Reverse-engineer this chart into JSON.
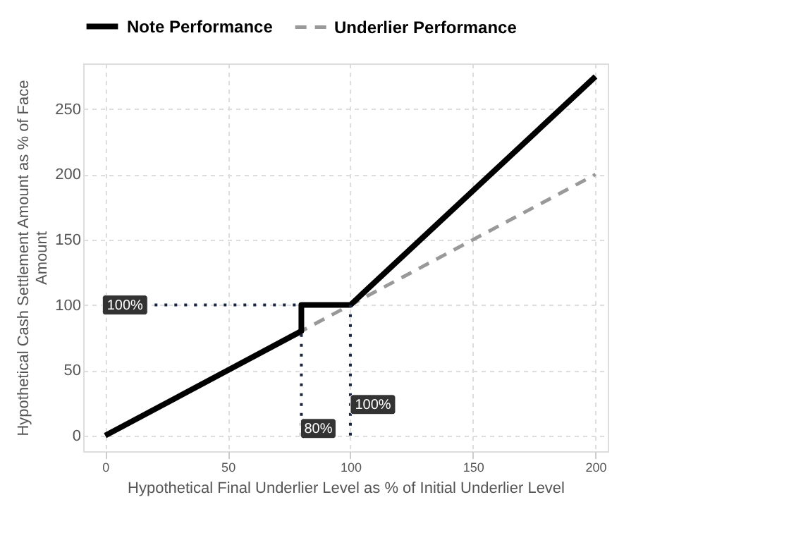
{
  "chart_data": {
    "type": "line",
    "xlabel": "Hypothetical Final Underlier Level as % of Initial Underlier Level",
    "ylabel": "Hypothetical Cash Settlement Amount as % of Face Amount",
    "xlim": [
      -9,
      205
    ],
    "ylim": [
      -12,
      285
    ],
    "xticks": [
      0,
      50,
      100,
      150,
      200
    ],
    "yticks": [
      0,
      50,
      100,
      150,
      200,
      250
    ],
    "grid": true,
    "legend": "top",
    "marker": "none",
    "series": [
      {
        "name": "Underlier Performance",
        "color": "#999999",
        "line_style": "dashed",
        "x": [
          0,
          200
        ],
        "values": [
          0,
          200
        ]
      },
      {
        "name": "Note Performance",
        "color": "#000000",
        "line_style": "solid",
        "x": [
          0,
          80,
          80,
          100,
          200
        ],
        "values": [
          0,
          80,
          100,
          100,
          275
        ]
      },
      {
        "color": "#1a2540",
        "line_style": "dotted",
        "x": [
          0,
          80
        ],
        "values": [
          100,
          100
        ]
      },
      {
        "color": "#1a2540",
        "line_style": "dotted",
        "x": [
          80,
          80
        ],
        "values": [
          0,
          80
        ]
      },
      {
        "color": "#1a2540",
        "line_style": "dotted",
        "x": [
          100,
          100
        ],
        "values": [
          0,
          100
        ]
      }
    ],
    "annotations": [
      {
        "text": "100%",
        "x": 0,
        "y": 100
      },
      {
        "text": "80%",
        "x": 80,
        "y": 0
      },
      {
        "text": "100%",
        "x": 100,
        "y": 0
      }
    ]
  }
}
